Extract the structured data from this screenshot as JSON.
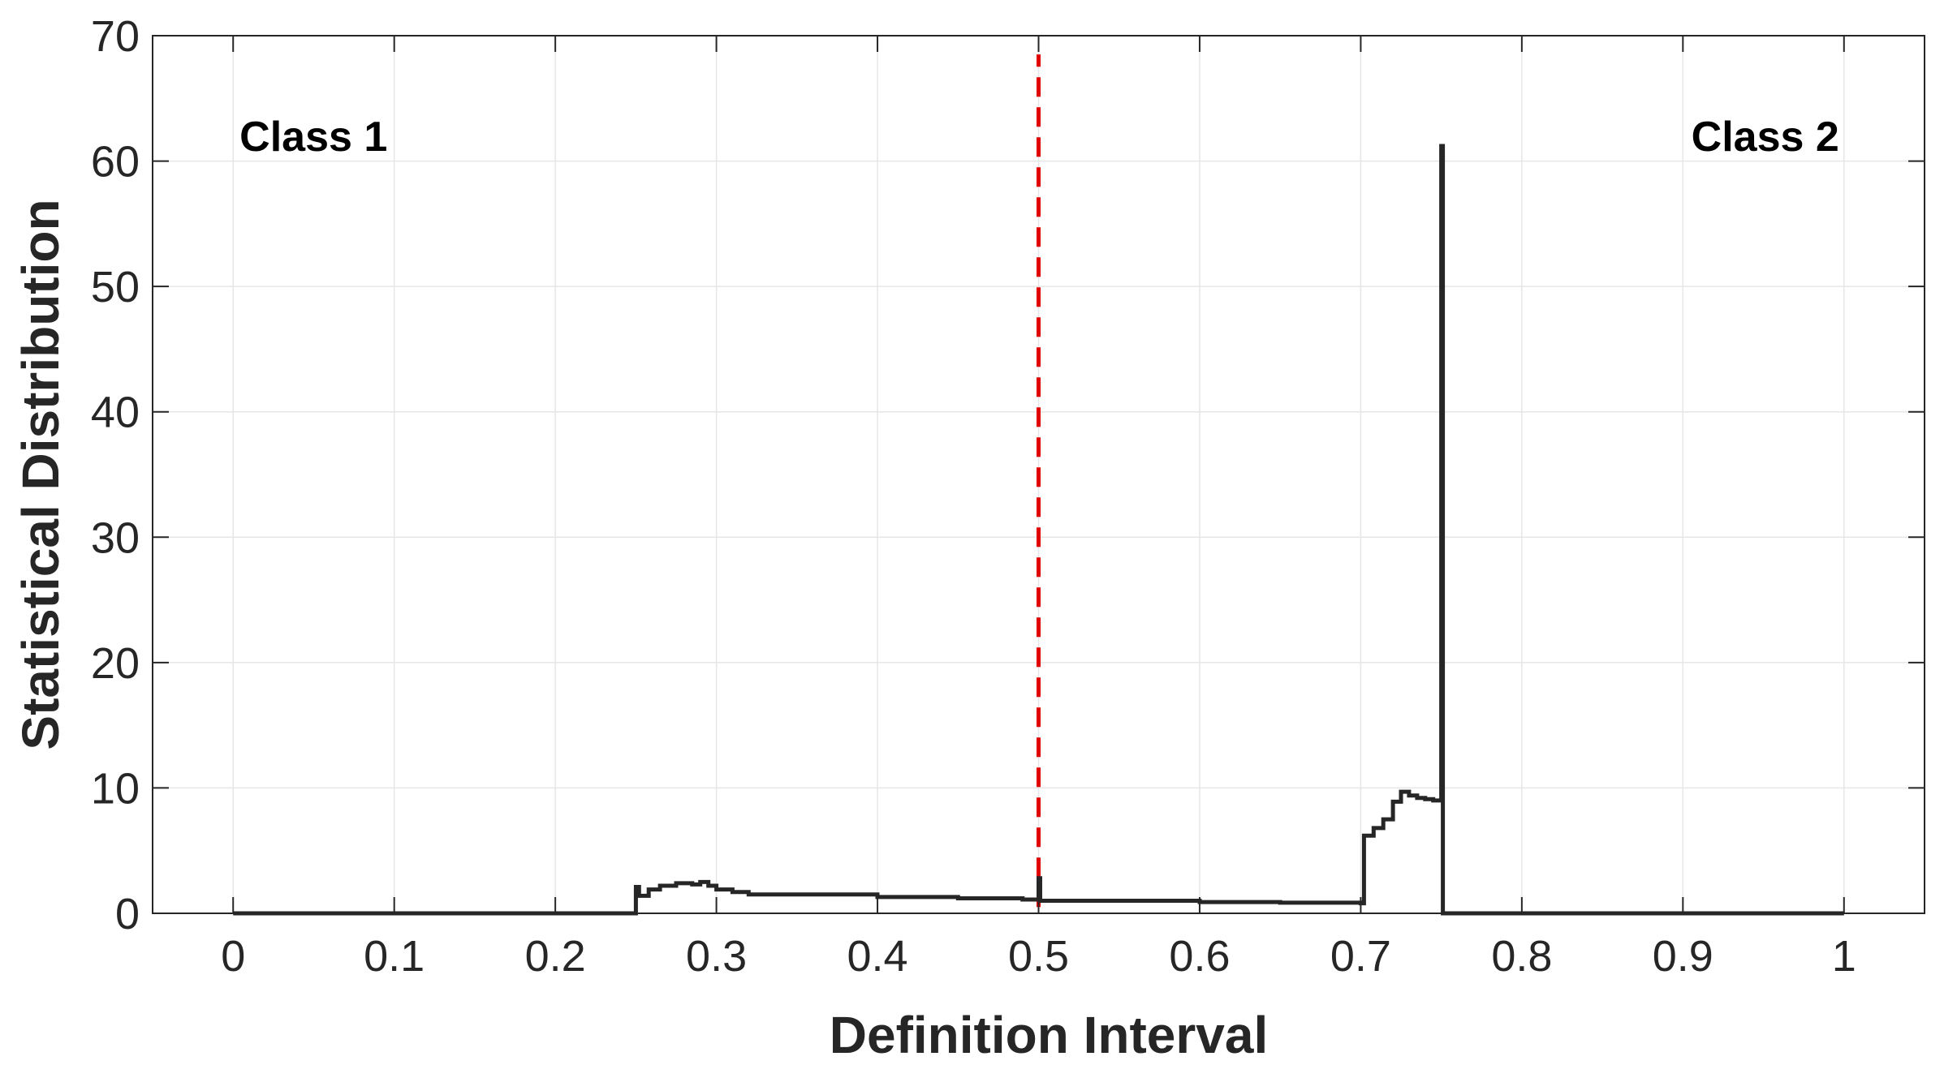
{
  "chart_data": {
    "type": "line",
    "title": "",
    "xlabel": "Definition Interval",
    "ylabel": "Statistical Distribution",
    "xlim": [
      -0.05,
      1.05
    ],
    "ylim": [
      0,
      70
    ],
    "xticks": [
      0,
      0.1,
      0.2,
      0.3,
      0.4,
      0.5,
      0.6,
      0.7,
      0.8,
      0.9,
      1
    ],
    "xtick_labels": [
      "0",
      "0.1",
      "0.2",
      "0.3",
      "0.4",
      "0.5",
      "0.6",
      "0.7",
      "0.8",
      "0.9",
      "1"
    ],
    "yticks": [
      0,
      10,
      20,
      30,
      40,
      50,
      60,
      70
    ],
    "ytick_labels": [
      "0",
      "10",
      "20",
      "30",
      "40",
      "50",
      "60",
      "70"
    ],
    "grid": true,
    "series": [
      {
        "color": "#262626",
        "style": "stairs",
        "points": [
          [
            0,
            0
          ],
          [
            0.25,
            0
          ],
          [
            0.25,
            2.1
          ],
          [
            0.252,
            1.4
          ],
          [
            0.258,
            1.9
          ],
          [
            0.265,
            2.2
          ],
          [
            0.275,
            2.4
          ],
          [
            0.285,
            2.3
          ],
          [
            0.29,
            2.5
          ],
          [
            0.295,
            2.2
          ],
          [
            0.3,
            1.9
          ],
          [
            0.31,
            1.7
          ],
          [
            0.32,
            1.5
          ],
          [
            0.35,
            1.5
          ],
          [
            0.4,
            1.3
          ],
          [
            0.45,
            1.2
          ],
          [
            0.49,
            1.1
          ],
          [
            0.499,
            1.1
          ],
          [
            0.5,
            2.8
          ],
          [
            0.501,
            1.0
          ],
          [
            0.55,
            1.0
          ],
          [
            0.6,
            0.9
          ],
          [
            0.65,
            0.85
          ],
          [
            0.7,
            0.8
          ],
          [
            0.702,
            6.2
          ],
          [
            0.708,
            6.8
          ],
          [
            0.714,
            7.5
          ],
          [
            0.72,
            8.9
          ],
          [
            0.725,
            9.7
          ],
          [
            0.73,
            9.4
          ],
          [
            0.735,
            9.2
          ],
          [
            0.74,
            9.1
          ],
          [
            0.745,
            9.0
          ],
          [
            0.75,
            9.0
          ],
          [
            0.75,
            61.2
          ],
          [
            0.751,
            0
          ],
          [
            1,
            0
          ]
        ]
      }
    ],
    "reference_lines": [
      {
        "x": 0.5,
        "y_from": 0.5,
        "y_to": 68.5,
        "color": "#e00000",
        "style": "dashed"
      }
    ],
    "annotations": [
      {
        "text": "Class 1",
        "x": 0.004,
        "y": 61.2,
        "anchor": "start"
      },
      {
        "text": "Class 2",
        "x": 0.997,
        "y": 61.2,
        "anchor": "end"
      }
    ]
  }
}
